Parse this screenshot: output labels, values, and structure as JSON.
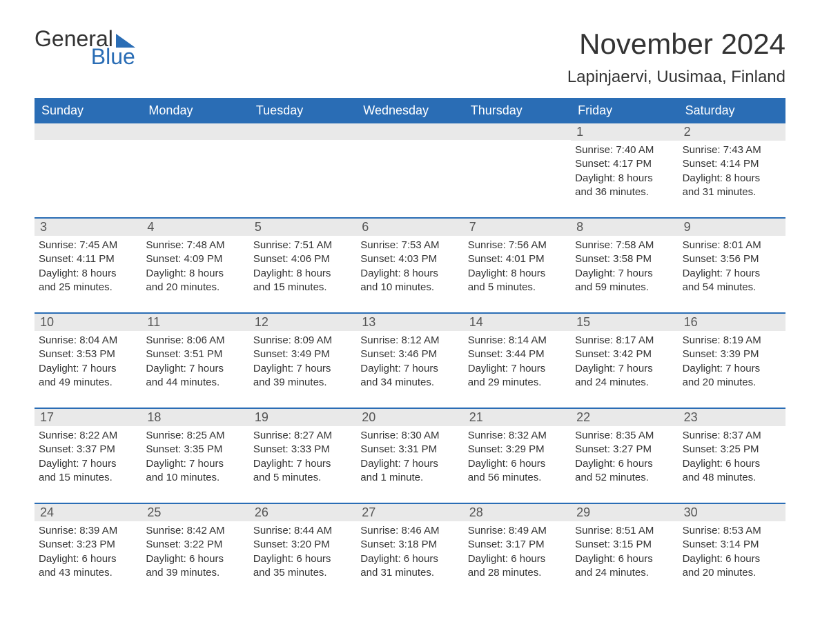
{
  "logo": {
    "word1": "General",
    "word2": "Blue",
    "accent_color": "#2a6db5"
  },
  "title": "November 2024",
  "location": "Lapinjaervi, Uusimaa, Finland",
  "colors": {
    "header_bg": "#2a6db5",
    "header_fg": "#ffffff",
    "daynum_bg": "#e9e9e9",
    "text": "#333333",
    "background": "#ffffff",
    "week_border": "#2a6db5"
  },
  "typography": {
    "month_title_fontsize": 42,
    "location_fontsize": 24,
    "day_header_fontsize": 18,
    "daynum_fontsize": 18,
    "body_fontsize": 15
  },
  "layout": {
    "columns": 7,
    "rows": 5
  },
  "day_headers": [
    "Sunday",
    "Monday",
    "Tuesday",
    "Wednesday",
    "Thursday",
    "Friday",
    "Saturday"
  ],
  "weeks": [
    [
      {
        "empty": true
      },
      {
        "empty": true
      },
      {
        "empty": true
      },
      {
        "empty": true
      },
      {
        "empty": true
      },
      {
        "day": "1",
        "sunrise": "Sunrise: 7:40 AM",
        "sunset": "Sunset: 4:17 PM",
        "daylight1": "Daylight: 8 hours",
        "daylight2": "and 36 minutes."
      },
      {
        "day": "2",
        "sunrise": "Sunrise: 7:43 AM",
        "sunset": "Sunset: 4:14 PM",
        "daylight1": "Daylight: 8 hours",
        "daylight2": "and 31 minutes."
      }
    ],
    [
      {
        "day": "3",
        "sunrise": "Sunrise: 7:45 AM",
        "sunset": "Sunset: 4:11 PM",
        "daylight1": "Daylight: 8 hours",
        "daylight2": "and 25 minutes."
      },
      {
        "day": "4",
        "sunrise": "Sunrise: 7:48 AM",
        "sunset": "Sunset: 4:09 PM",
        "daylight1": "Daylight: 8 hours",
        "daylight2": "and 20 minutes."
      },
      {
        "day": "5",
        "sunrise": "Sunrise: 7:51 AM",
        "sunset": "Sunset: 4:06 PM",
        "daylight1": "Daylight: 8 hours",
        "daylight2": "and 15 minutes."
      },
      {
        "day": "6",
        "sunrise": "Sunrise: 7:53 AM",
        "sunset": "Sunset: 4:03 PM",
        "daylight1": "Daylight: 8 hours",
        "daylight2": "and 10 minutes."
      },
      {
        "day": "7",
        "sunrise": "Sunrise: 7:56 AM",
        "sunset": "Sunset: 4:01 PM",
        "daylight1": "Daylight: 8 hours",
        "daylight2": "and 5 minutes."
      },
      {
        "day": "8",
        "sunrise": "Sunrise: 7:58 AM",
        "sunset": "Sunset: 3:58 PM",
        "daylight1": "Daylight: 7 hours",
        "daylight2": "and 59 minutes."
      },
      {
        "day": "9",
        "sunrise": "Sunrise: 8:01 AM",
        "sunset": "Sunset: 3:56 PM",
        "daylight1": "Daylight: 7 hours",
        "daylight2": "and 54 minutes."
      }
    ],
    [
      {
        "day": "10",
        "sunrise": "Sunrise: 8:04 AM",
        "sunset": "Sunset: 3:53 PM",
        "daylight1": "Daylight: 7 hours",
        "daylight2": "and 49 minutes."
      },
      {
        "day": "11",
        "sunrise": "Sunrise: 8:06 AM",
        "sunset": "Sunset: 3:51 PM",
        "daylight1": "Daylight: 7 hours",
        "daylight2": "and 44 minutes."
      },
      {
        "day": "12",
        "sunrise": "Sunrise: 8:09 AM",
        "sunset": "Sunset: 3:49 PM",
        "daylight1": "Daylight: 7 hours",
        "daylight2": "and 39 minutes."
      },
      {
        "day": "13",
        "sunrise": "Sunrise: 8:12 AM",
        "sunset": "Sunset: 3:46 PM",
        "daylight1": "Daylight: 7 hours",
        "daylight2": "and 34 minutes."
      },
      {
        "day": "14",
        "sunrise": "Sunrise: 8:14 AM",
        "sunset": "Sunset: 3:44 PM",
        "daylight1": "Daylight: 7 hours",
        "daylight2": "and 29 minutes."
      },
      {
        "day": "15",
        "sunrise": "Sunrise: 8:17 AM",
        "sunset": "Sunset: 3:42 PM",
        "daylight1": "Daylight: 7 hours",
        "daylight2": "and 24 minutes."
      },
      {
        "day": "16",
        "sunrise": "Sunrise: 8:19 AM",
        "sunset": "Sunset: 3:39 PM",
        "daylight1": "Daylight: 7 hours",
        "daylight2": "and 20 minutes."
      }
    ],
    [
      {
        "day": "17",
        "sunrise": "Sunrise: 8:22 AM",
        "sunset": "Sunset: 3:37 PM",
        "daylight1": "Daylight: 7 hours",
        "daylight2": "and 15 minutes."
      },
      {
        "day": "18",
        "sunrise": "Sunrise: 8:25 AM",
        "sunset": "Sunset: 3:35 PM",
        "daylight1": "Daylight: 7 hours",
        "daylight2": "and 10 minutes."
      },
      {
        "day": "19",
        "sunrise": "Sunrise: 8:27 AM",
        "sunset": "Sunset: 3:33 PM",
        "daylight1": "Daylight: 7 hours",
        "daylight2": "and 5 minutes."
      },
      {
        "day": "20",
        "sunrise": "Sunrise: 8:30 AM",
        "sunset": "Sunset: 3:31 PM",
        "daylight1": "Daylight: 7 hours",
        "daylight2": "and 1 minute."
      },
      {
        "day": "21",
        "sunrise": "Sunrise: 8:32 AM",
        "sunset": "Sunset: 3:29 PM",
        "daylight1": "Daylight: 6 hours",
        "daylight2": "and 56 minutes."
      },
      {
        "day": "22",
        "sunrise": "Sunrise: 8:35 AM",
        "sunset": "Sunset: 3:27 PM",
        "daylight1": "Daylight: 6 hours",
        "daylight2": "and 52 minutes."
      },
      {
        "day": "23",
        "sunrise": "Sunrise: 8:37 AM",
        "sunset": "Sunset: 3:25 PM",
        "daylight1": "Daylight: 6 hours",
        "daylight2": "and 48 minutes."
      }
    ],
    [
      {
        "day": "24",
        "sunrise": "Sunrise: 8:39 AM",
        "sunset": "Sunset: 3:23 PM",
        "daylight1": "Daylight: 6 hours",
        "daylight2": "and 43 minutes."
      },
      {
        "day": "25",
        "sunrise": "Sunrise: 8:42 AM",
        "sunset": "Sunset: 3:22 PM",
        "daylight1": "Daylight: 6 hours",
        "daylight2": "and 39 minutes."
      },
      {
        "day": "26",
        "sunrise": "Sunrise: 8:44 AM",
        "sunset": "Sunset: 3:20 PM",
        "daylight1": "Daylight: 6 hours",
        "daylight2": "and 35 minutes."
      },
      {
        "day": "27",
        "sunrise": "Sunrise: 8:46 AM",
        "sunset": "Sunset: 3:18 PM",
        "daylight1": "Daylight: 6 hours",
        "daylight2": "and 31 minutes."
      },
      {
        "day": "28",
        "sunrise": "Sunrise: 8:49 AM",
        "sunset": "Sunset: 3:17 PM",
        "daylight1": "Daylight: 6 hours",
        "daylight2": "and 28 minutes."
      },
      {
        "day": "29",
        "sunrise": "Sunrise: 8:51 AM",
        "sunset": "Sunset: 3:15 PM",
        "daylight1": "Daylight: 6 hours",
        "daylight2": "and 24 minutes."
      },
      {
        "day": "30",
        "sunrise": "Sunrise: 8:53 AM",
        "sunset": "Sunset: 3:14 PM",
        "daylight1": "Daylight: 6 hours",
        "daylight2": "and 20 minutes."
      }
    ]
  ]
}
